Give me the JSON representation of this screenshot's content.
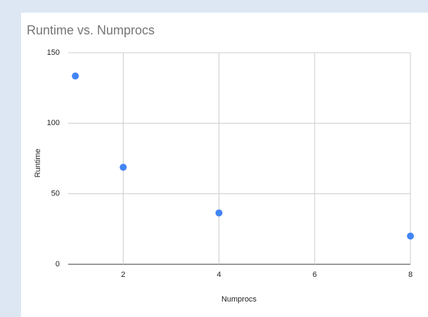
{
  "chart_data": {
    "type": "scatter",
    "title": "Runtime vs. Numprocs",
    "x_label": "Numprocs",
    "y_label": "Runtime",
    "x": [
      1,
      2,
      4,
      8
    ],
    "values": [
      133.5,
      68.8,
      36.4,
      20
    ],
    "color": "#4285f4",
    "xlim": [
      0.85,
      8
    ],
    "xticks": [
      2,
      4,
      6,
      8
    ],
    "ylim": [
      0,
      150
    ],
    "yticks": [
      0,
      50,
      100,
      150
    ],
    "grid": true
  }
}
